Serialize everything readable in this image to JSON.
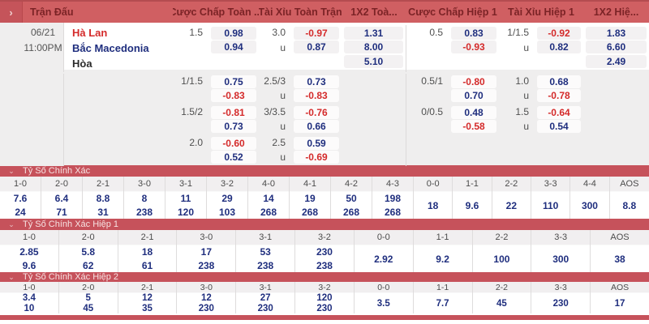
{
  "header": {
    "chevron": "›",
    "col_match": "Trận Đấu",
    "col_ft_hdp": "Cược Chấp Toàn ...",
    "col_ft_ou": "Tài Xỉu Toàn Trận",
    "col_ft_1x2": "1X2 Toà...",
    "col_h1_hdp": "Cược Chấp Hiệp 1",
    "col_h1_ou": "Tài Xỉu Hiệp 1",
    "col_h1_1x2": "1X2 Hiệ..."
  },
  "match": {
    "date": "06/21",
    "time": "11:00PM",
    "home": "Hà Lan",
    "away": "Bắc Macedonia",
    "draw": "Hòa"
  },
  "odds": {
    "row1": {
      "ft_hdp_line": "1.5",
      "ft_hdp_home": "0.98",
      "ft_hdp_away": "0.94",
      "ft_ou_line": "3.0",
      "ft_ou_over": "-0.97",
      "ft_ou_under_label": "u",
      "ft_ou_under": "0.87",
      "ft_1x2_home": "1.31",
      "ft_1x2_away": "8.00",
      "ft_1x2_draw": "5.10",
      "h1_hdp_line": "0.5",
      "h1_hdp_home": "0.83",
      "h1_hdp_away": "-0.93",
      "h1_ou_line": "1/1.5",
      "h1_ou_over": "-0.92",
      "h1_ou_under_label": "u",
      "h1_ou_under": "0.82",
      "h1_1x2_home": "1.83",
      "h1_1x2_away": "6.60",
      "h1_1x2_draw": "2.49"
    },
    "row2": {
      "ft_hdp_line": "1/1.5",
      "ft_hdp_home": "0.75",
      "ft_hdp_away": "-0.83",
      "ft_ou_line": "2.5/3",
      "ft_ou_over": "0.73",
      "ft_ou_under_label": "u",
      "ft_ou_under": "-0.83",
      "h1_hdp_line": "0.5/1",
      "h1_hdp_home": "-0.80",
      "h1_hdp_away": "0.70",
      "h1_ou_line": "1.0",
      "h1_ou_over": "0.68",
      "h1_ou_under_label": "u",
      "h1_ou_under": "-0.78"
    },
    "row3": {
      "ft_hdp_line": "1.5/2",
      "ft_hdp_home": "-0.81",
      "ft_hdp_away": "0.73",
      "ft_ou_line": "3/3.5",
      "ft_ou_over": "-0.76",
      "ft_ou_under_label": "u",
      "ft_ou_under": "0.66",
      "h1_hdp_line": "0/0.5",
      "h1_hdp_home": "0.48",
      "h1_hdp_away": "-0.58",
      "h1_ou_line": "1.5",
      "h1_ou_over": "-0.64",
      "h1_ou_under_label": "u",
      "h1_ou_under": "0.54"
    },
    "row4": {
      "ft_hdp_line": "2.0",
      "ft_hdp_home": "-0.60",
      "ft_hdp_away": "0.52",
      "ft_ou_line": "2.5",
      "ft_ou_over": "0.59",
      "ft_ou_under_label": "u",
      "ft_ou_under": "-0.69"
    }
  },
  "score_sections": [
    {
      "title": "Tỷ Số Chính Xác",
      "columns": [
        {
          "score": "1-0",
          "values": [
            "7.6",
            "24"
          ]
        },
        {
          "score": "2-0",
          "values": [
            "6.4",
            "71"
          ]
        },
        {
          "score": "2-1",
          "values": [
            "8.8",
            "31"
          ]
        },
        {
          "score": "3-0",
          "values": [
            "8",
            "238"
          ]
        },
        {
          "score": "3-1",
          "values": [
            "11",
            "120"
          ]
        },
        {
          "score": "3-2",
          "values": [
            "29",
            "103"
          ]
        },
        {
          "score": "4-0",
          "values": [
            "14",
            "268"
          ]
        },
        {
          "score": "4-1",
          "values": [
            "19",
            "268"
          ]
        },
        {
          "score": "4-2",
          "values": [
            "50",
            "268"
          ]
        },
        {
          "score": "4-3",
          "values": [
            "198",
            "268"
          ]
        },
        {
          "score": "0-0",
          "values": [
            "18"
          ]
        },
        {
          "score": "1-1",
          "values": [
            "9.6"
          ]
        },
        {
          "score": "2-2",
          "values": [
            "22"
          ]
        },
        {
          "score": "3-3",
          "values": [
            "110"
          ]
        },
        {
          "score": "4-4",
          "values": [
            "300"
          ]
        },
        {
          "score": "AOS",
          "values": [
            "8.8"
          ]
        }
      ]
    },
    {
      "title": "Tỷ Số Chính Xác Hiệp 1",
      "columns": [
        {
          "score": "1-0",
          "values": [
            "2.85",
            "9.6"
          ]
        },
        {
          "score": "2-0",
          "values": [
            "5.8",
            "62"
          ]
        },
        {
          "score": "2-1",
          "values": [
            "18",
            "61"
          ]
        },
        {
          "score": "3-0",
          "values": [
            "17",
            "238"
          ]
        },
        {
          "score": "3-1",
          "values": [
            "53",
            "238"
          ]
        },
        {
          "score": "3-2",
          "values": [
            "230",
            "238"
          ]
        },
        {
          "score": "0-0",
          "values": [
            "2.92"
          ]
        },
        {
          "score": "1-1",
          "values": [
            "9.2"
          ]
        },
        {
          "score": "2-2",
          "values": [
            "100"
          ]
        },
        {
          "score": "3-3",
          "values": [
            "300"
          ]
        },
        {
          "score": "AOS",
          "values": [
            "38"
          ]
        }
      ]
    },
    {
      "title": "Tỷ Số Chính Xác Hiệp 2",
      "columns": [
        {
          "score": "1-0",
          "values": [
            "3.4",
            "10"
          ]
        },
        {
          "score": "2-0",
          "values": [
            "5",
            "45"
          ]
        },
        {
          "score": "2-1",
          "values": [
            "12",
            "35"
          ]
        },
        {
          "score": "3-0",
          "values": [
            "12",
            "230"
          ]
        },
        {
          "score": "3-1",
          "values": [
            "27",
            "230"
          ]
        },
        {
          "score": "3-2",
          "values": [
            "120",
            "230"
          ]
        },
        {
          "score": "0-0",
          "values": [
            "3.5"
          ]
        },
        {
          "score": "1-1",
          "values": [
            "7.7"
          ]
        },
        {
          "score": "2-2",
          "values": [
            "45"
          ]
        },
        {
          "score": "3-3",
          "values": [
            "230"
          ]
        },
        {
          "score": "AOS",
          "values": [
            "17"
          ]
        }
      ]
    }
  ],
  "colors": {
    "header_bg": "#d05f62",
    "header_text": "#7b2326",
    "section_bar_bg": "#c6525b",
    "odds_positive": "#1f2e7e",
    "odds_negative": "#d42a2a",
    "home_team": "#d42a2a",
    "away_team": "#1f2e7e"
  }
}
